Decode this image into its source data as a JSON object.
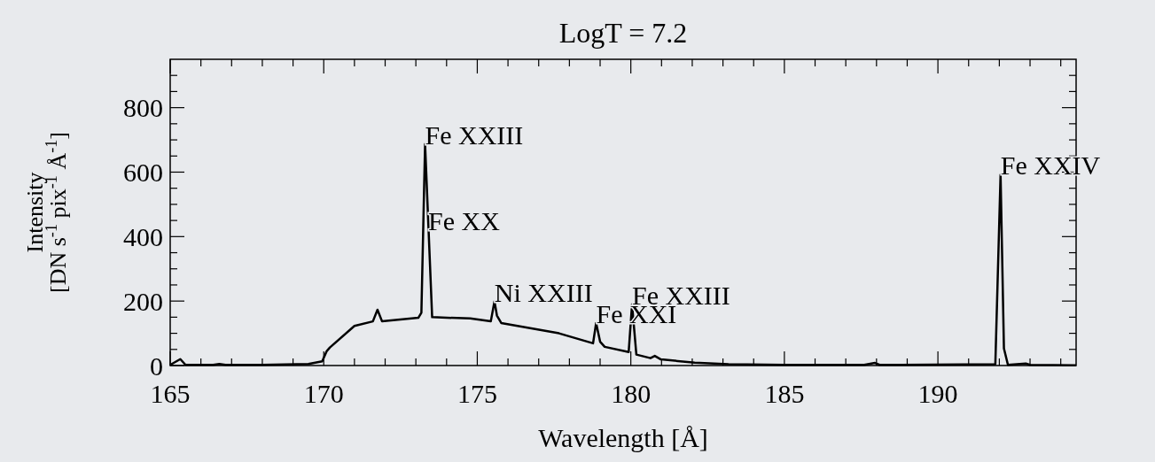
{
  "chart_data": {
    "type": "line",
    "title": "LogT = 7.2",
    "xlabel": "Wavelength [Å]",
    "ylabel": "Intensity\n[DN s$^{-1}$ pix$^{-1}$ Å$^{-1}$]",
    "x": [
      165,
      165.33,
      165.5,
      166.4,
      166.6,
      166.8,
      168,
      169.5,
      169.95,
      170.1,
      170.2,
      171.0,
      171.6,
      171.75,
      171.9,
      173.08,
      173.18,
      173.3,
      173.53,
      174.77,
      175.44,
      175.56,
      175.64,
      175.78,
      177.66,
      178.77,
      178.87,
      179.0,
      179.15,
      179.93,
      180.04,
      180.18,
      180.64,
      180.78,
      180.98,
      182.08,
      183.18,
      185,
      187.6,
      187.95,
      188.1,
      191.87,
      192.04,
      192.15,
      192.28,
      192.86,
      193.0,
      194.5
    ],
    "series": [
      {
        "color": "#000000",
        "values": [
          2,
          20,
          2,
          2,
          5,
          2,
          2,
          5,
          13,
          45,
          56,
          123,
          137,
          173,
          137,
          148,
          164,
          687,
          150,
          146,
          137,
          199,
          155,
          132,
          100,
          69,
          132,
          74,
          58,
          42,
          190,
          34,
          23,
          30,
          19,
          9,
          4,
          2,
          2,
          8,
          2,
          4,
          592,
          53,
          2,
          6,
          2,
          1
        ]
      }
    ],
    "xlim": [
      165,
      194.5
    ],
    "ylim": [
      0,
      950
    ],
    "xticks": [
      165,
      {
        "value": 166,
        "label": null
      },
      {
        "value": 167,
        "label": null
      },
      {
        "value": 168,
        "label": null
      },
      {
        "value": 169,
        "label": null
      },
      170,
      {
        "value": 171,
        "label": null
      },
      {
        "value": 172,
        "label": null
      },
      {
        "value": 173,
        "label": null
      },
      {
        "value": 174,
        "label": null
      },
      175,
      {
        "value": 176,
        "label": null
      },
      {
        "value": 177,
        "label": null
      },
      {
        "value": 178,
        "label": null
      },
      {
        "value": 179,
        "label": null
      },
      180,
      {
        "value": 181,
        "label": null
      },
      {
        "value": 182,
        "label": null
      },
      {
        "value": 183,
        "label": null
      },
      {
        "value": 184,
        "label": null
      },
      185,
      {
        "value": 186,
        "label": null
      },
      {
        "value": 187,
        "label": null
      },
      {
        "value": 188,
        "label": null
      },
      {
        "value": 189,
        "label": null
      },
      190,
      {
        "value": 191,
        "label": null
      },
      {
        "value": 192,
        "label": null
      },
      {
        "value": 193,
        "label": null
      },
      {
        "value": 194,
        "label": null
      }
    ],
    "yticks": [
      0,
      {
        "value": 50,
        "label": null
      },
      {
        "value": 100,
        "label": null
      },
      {
        "value": 150,
        "label": null
      },
      200,
      {
        "value": 250,
        "label": null
      },
      {
        "value": 300,
        "label": null
      },
      {
        "value": 350,
        "label": null
      },
      400,
      {
        "value": 450,
        "label": null
      },
      {
        "value": 500,
        "label": null
      },
      {
        "value": 550,
        "label": null
      },
      600,
      {
        "value": 650,
        "label": null
      },
      {
        "value": 700,
        "label": null
      },
      {
        "value": 750,
        "label": null
      },
      800,
      {
        "value": 850,
        "label": null
      },
      {
        "value": 900,
        "label": null
      }
    ],
    "annotations": [
      {
        "text": "Fe XXIII",
        "x": 173.3,
        "y": 687
      },
      {
        "text": "Fe XX",
        "x": 173.4,
        "y": 421
      },
      {
        "text": "Ni XXIII",
        "x": 175.56,
        "y": 199
      },
      {
        "text": "Fe XXI",
        "x": 178.87,
        "y": 132
      },
      {
        "text": "Fe XXIII",
        "x": 180.04,
        "y": 190
      },
      {
        "text": "Fe XXIV",
        "x": 192.04,
        "y": 592
      }
    ],
    "marker": "none",
    "line_style": "solid"
  }
}
